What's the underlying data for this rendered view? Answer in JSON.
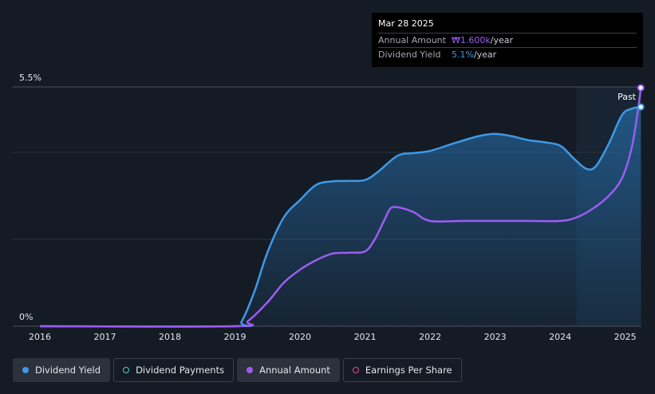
{
  "chart_data": {
    "type": "line",
    "y_tick_labels": [
      "5.5%",
      "0%"
    ],
    "ylim": [
      0,
      5.5
    ],
    "x_tick_labels": [
      "2016",
      "2017",
      "2018",
      "2019",
      "2020",
      "2021",
      "2022",
      "2023",
      "2024",
      "2025"
    ],
    "xlim": [
      2016,
      2025.25
    ],
    "past_label": "Past",
    "forecast_start": 2024.25,
    "grid": true,
    "series": [
      {
        "name": "Dividend Yield",
        "color": "#3d9ae8",
        "filled": true,
        "points": [
          [
            2016,
            0
          ],
          [
            2019,
            0
          ],
          [
            2019.1,
            0.1
          ],
          [
            2019.3,
            0.8
          ],
          [
            2019.5,
            1.7
          ],
          [
            2019.75,
            2.5
          ],
          [
            2020,
            2.9
          ],
          [
            2020.25,
            3.25
          ],
          [
            2020.5,
            3.33
          ],
          [
            2020.75,
            3.34
          ],
          [
            2021,
            3.36
          ],
          [
            2021.2,
            3.55
          ],
          [
            2021.5,
            3.92
          ],
          [
            2021.75,
            3.98
          ],
          [
            2022,
            4.03
          ],
          [
            2022.4,
            4.22
          ],
          [
            2022.75,
            4.37
          ],
          [
            2023,
            4.42
          ],
          [
            2023.25,
            4.37
          ],
          [
            2023.5,
            4.28
          ],
          [
            2023.75,
            4.23
          ],
          [
            2024,
            4.15
          ],
          [
            2024.2,
            3.87
          ],
          [
            2024.4,
            3.62
          ],
          [
            2024.55,
            3.68
          ],
          [
            2024.75,
            4.2
          ],
          [
            2024.95,
            4.85
          ],
          [
            2025.1,
            5.0
          ],
          [
            2025.24,
            5.04
          ]
        ]
      },
      {
        "name": "Annual Amount",
        "color": "#9d5cf2",
        "filled": false,
        "points": [
          [
            2016,
            0
          ],
          [
            2019,
            0
          ],
          [
            2019.2,
            0.12
          ],
          [
            2019.5,
            0.55
          ],
          [
            2019.75,
            1.0
          ],
          [
            2020,
            1.3
          ],
          [
            2020.25,
            1.52
          ],
          [
            2020.5,
            1.67
          ],
          [
            2020.75,
            1.69
          ],
          [
            2021,
            1.72
          ],
          [
            2021.15,
            2.0
          ],
          [
            2021.3,
            2.45
          ],
          [
            2021.4,
            2.72
          ],
          [
            2021.55,
            2.72
          ],
          [
            2021.75,
            2.62
          ],
          [
            2022,
            2.42
          ],
          [
            2022.5,
            2.42
          ],
          [
            2023,
            2.42
          ],
          [
            2023.5,
            2.42
          ],
          [
            2024,
            2.42
          ],
          [
            2024.25,
            2.5
          ],
          [
            2024.5,
            2.7
          ],
          [
            2024.75,
            3.0
          ],
          [
            2024.95,
            3.4
          ],
          [
            2025.1,
            4.1
          ],
          [
            2025.2,
            5.0
          ],
          [
            2025.24,
            5.48
          ]
        ]
      }
    ]
  },
  "tooltip": {
    "date": "Mar 28 2025",
    "rows": [
      {
        "label": "Annual Amount",
        "value": "₩1.600k",
        "unit": "/year"
      },
      {
        "label": "Dividend Yield",
        "value": "5.1%",
        "unit": "/year"
      }
    ]
  },
  "legend": [
    {
      "label": "Dividend Yield",
      "color": "#3d9ae8",
      "hollow": false,
      "active": true
    },
    {
      "label": "Dividend Payments",
      "color": "#4fd1c5",
      "hollow": true,
      "active": false
    },
    {
      "label": "Annual Amount",
      "color": "#9d5cf2",
      "hollow": false,
      "active": true
    },
    {
      "label": "Earnings Per Share",
      "color": "#e94a8c",
      "hollow": true,
      "active": false
    }
  ]
}
